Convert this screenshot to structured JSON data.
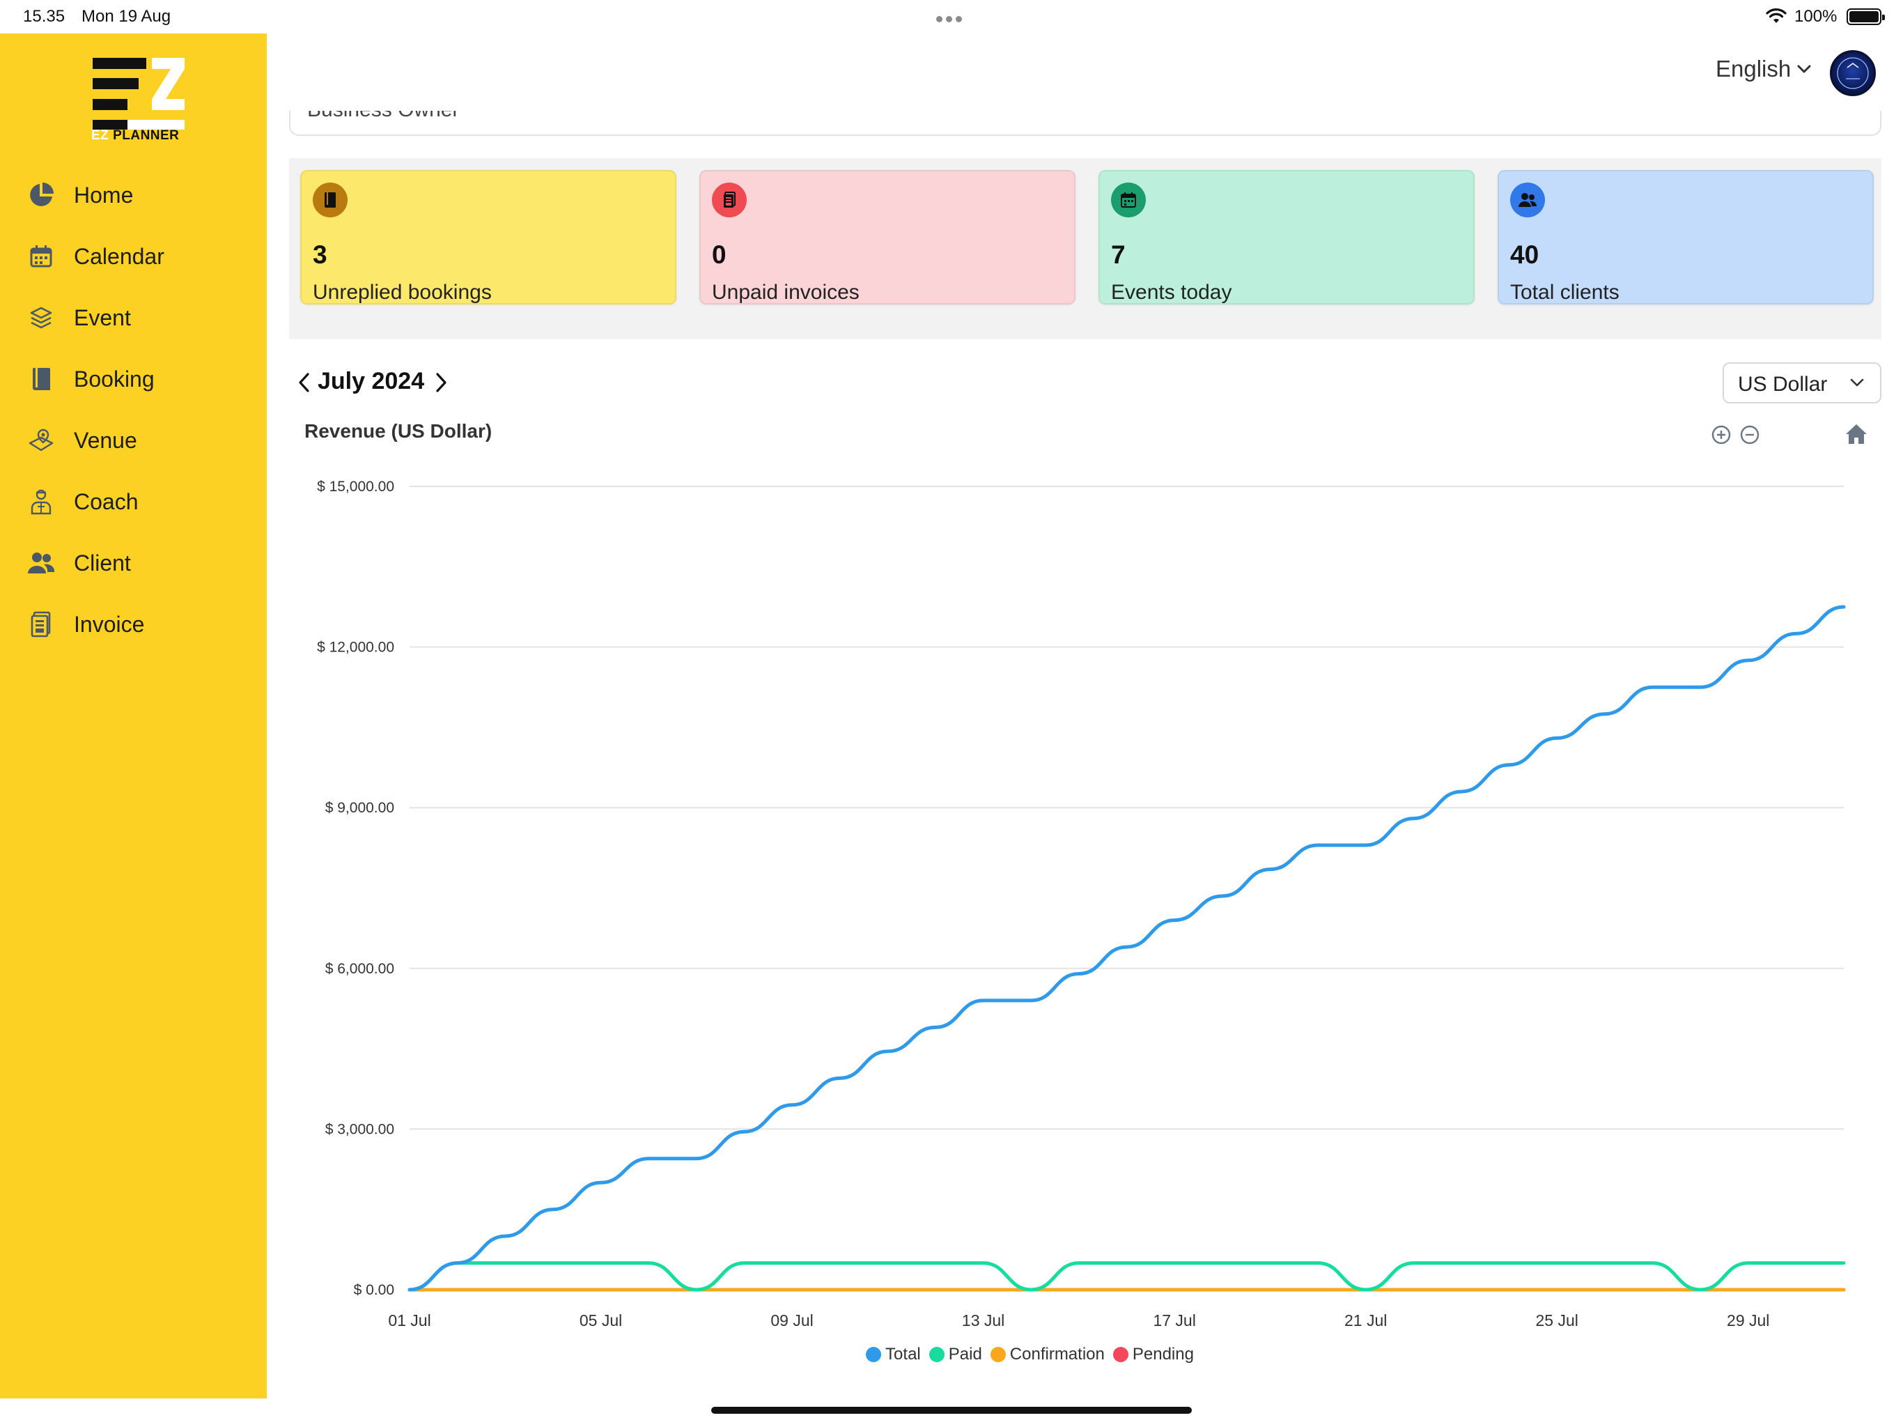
{
  "status_bar": {
    "time": "15.35",
    "date": "Mon 19 Aug",
    "battery": "100%"
  },
  "app": {
    "logo_prefix": "EZ",
    "logo_suffix": "PLANNER"
  },
  "sidebar": {
    "items": [
      {
        "label": "Home",
        "icon": "pie-chart-icon"
      },
      {
        "label": "Calendar",
        "icon": "calendar-icon"
      },
      {
        "label": "Event",
        "icon": "layers-icon"
      },
      {
        "label": "Booking",
        "icon": "book-icon"
      },
      {
        "label": "Venue",
        "icon": "map-pin-icon"
      },
      {
        "label": "Coach",
        "icon": "coach-icon"
      },
      {
        "label": "Client",
        "icon": "users-icon"
      },
      {
        "label": "Invoice",
        "icon": "invoice-icon"
      }
    ]
  },
  "header": {
    "language": "English",
    "partial_text": "Business Owner"
  },
  "stats": [
    {
      "value": "3",
      "label": "Unreplied bookings",
      "bg": "#fce86b",
      "icon_bg": "#b97a0f",
      "icon": "book-icon"
    },
    {
      "value": "0",
      "label": "Unpaid invoices",
      "bg": "#fad4d6",
      "icon_bg": "#ef4b53",
      "icon": "invoice-icon"
    },
    {
      "value": "7",
      "label": "Events today",
      "bg": "#bdf0dc",
      "icon_bg": "#1c9d6d",
      "icon": "calendar-icon"
    },
    {
      "value": "40",
      "label": "Total clients",
      "bg": "#c3dcfb",
      "icon_bg": "#3178e8",
      "icon": "users-icon"
    }
  ],
  "period": {
    "month": "July 2024"
  },
  "currency": {
    "selected": "US Dollar"
  },
  "chart_title": "Revenue (US Dollar)",
  "chart_data": {
    "type": "line",
    "title": "Revenue (US Dollar)",
    "xlabel": "",
    "ylabel": "",
    "ylim": [
      0,
      15000
    ],
    "yticks": [
      "$ 0.00",
      "$ 3,000.00",
      "$ 6,000.00",
      "$ 9,000.00",
      "$ 12,000.00",
      "$ 15,000.00"
    ],
    "xticks": [
      "01 Jul",
      "05 Jul",
      "09 Jul",
      "13 Jul",
      "17 Jul",
      "21 Jul",
      "25 Jul",
      "29 Jul"
    ],
    "x": [
      "01 Jul",
      "02 Jul",
      "03 Jul",
      "04 Jul",
      "05 Jul",
      "06 Jul",
      "07 Jul",
      "08 Jul",
      "09 Jul",
      "10 Jul",
      "11 Jul",
      "12 Jul",
      "13 Jul",
      "14 Jul",
      "15 Jul",
      "16 Jul",
      "17 Jul",
      "18 Jul",
      "19 Jul",
      "20 Jul",
      "21 Jul",
      "22 Jul",
      "23 Jul",
      "24 Jul",
      "25 Jul",
      "26 Jul",
      "27 Jul",
      "28 Jul",
      "29 Jul",
      "30 Jul",
      "31 Jul"
    ],
    "series": [
      {
        "name": "Total",
        "color": "#2f9ae9",
        "values": [
          0,
          500,
          1000,
          1500,
          2000,
          2450,
          2450,
          2950,
          3450,
          3950,
          4450,
          4900,
          5400,
          5400,
          5900,
          6400,
          6900,
          7350,
          7850,
          8300,
          8300,
          8800,
          9300,
          9800,
          10300,
          10750,
          11250,
          11250,
          11750,
          12250,
          12750
        ]
      },
      {
        "name": "Paid",
        "color": "#18dba0",
        "values": [
          0,
          500,
          500,
          500,
          500,
          500,
          0,
          500,
          500,
          500,
          500,
          500,
          500,
          0,
          500,
          500,
          500,
          500,
          500,
          500,
          0,
          500,
          500,
          500,
          500,
          500,
          500,
          0,
          500,
          500,
          500
        ]
      },
      {
        "name": "Confirmation",
        "color": "#f9a71d",
        "values": [
          0,
          0,
          0,
          0,
          0,
          0,
          0,
          0,
          0,
          0,
          0,
          0,
          0,
          0,
          0,
          0,
          0,
          0,
          0,
          0,
          0,
          0,
          0,
          0,
          0,
          0,
          0,
          0,
          0,
          0,
          0
        ]
      },
      {
        "name": "Pending",
        "color": "#f3485a",
        "values": [
          0,
          0,
          0,
          0,
          0,
          0,
          0,
          0,
          0,
          0,
          0,
          0,
          0,
          0,
          0,
          0,
          0,
          0,
          0,
          0,
          0,
          0,
          0,
          0,
          0,
          0,
          0,
          0,
          0,
          0,
          0
        ]
      }
    ],
    "legend": "bottom",
    "grid": true
  }
}
